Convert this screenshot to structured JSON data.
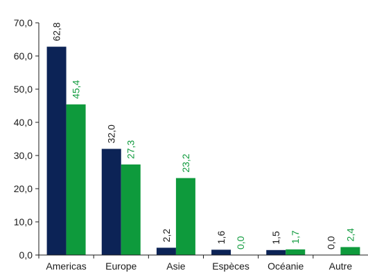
{
  "chart_data": {
    "type": "bar",
    "categories": [
      "Americas",
      "Europe",
      "Asie",
      "Espèces",
      "Océanie",
      "Autre"
    ],
    "series": [
      {
        "values": [
          62.8,
          32.0,
          2.2,
          1.6,
          1.5,
          0.0
        ],
        "labels": [
          "62,8",
          "32,0",
          "2,2",
          "1,6",
          "1,5",
          "0,0"
        ],
        "color": "#0c2356"
      },
      {
        "values": [
          45.4,
          27.3,
          23.2,
          0.0,
          1.7,
          2.4
        ],
        "labels": [
          "45,4",
          "27,3",
          "23,2",
          "0,0",
          "1,7",
          "2,4"
        ],
        "color": "#0e9a3c"
      }
    ],
    "ylim": [
      0,
      70
    ],
    "yticks": [
      0,
      10,
      20,
      30,
      40,
      50,
      60,
      70
    ],
    "ytick_labels": [
      "0,0",
      "10,0",
      "20,0",
      "30,0",
      "40,0",
      "50,0",
      "60,0",
      "70,0"
    ],
    "label_colors": [
      "#1a1a1a",
      "#0e9a3c"
    ],
    "grid": false,
    "legend": "none"
  }
}
